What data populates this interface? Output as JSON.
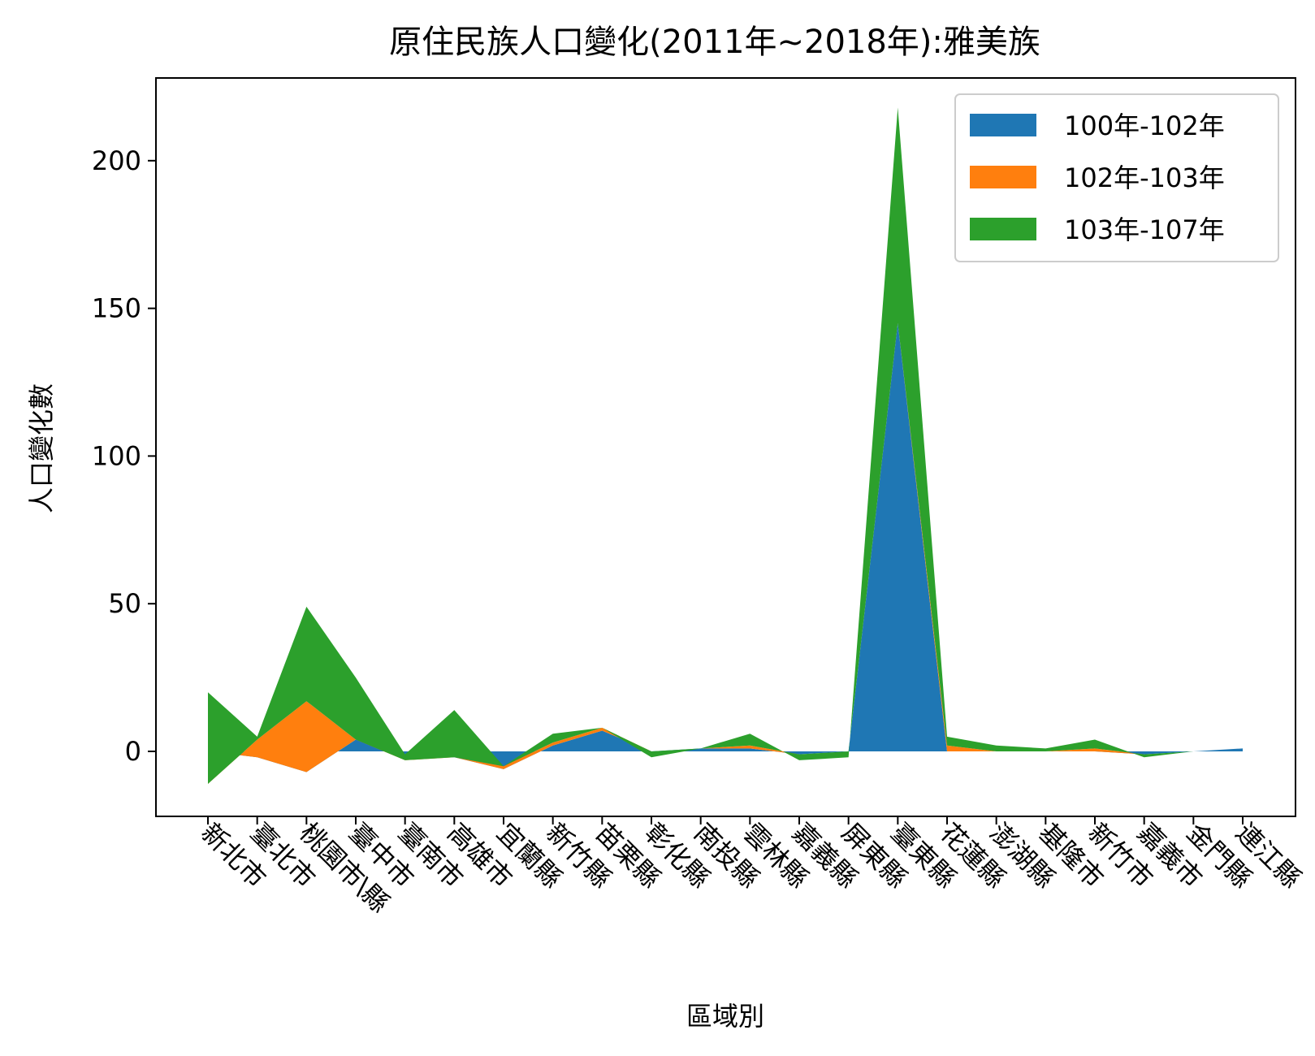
{
  "chart_data": {
    "type": "area",
    "stacked": true,
    "title": "原住民族人口變化(2011年~2018年):雅美族",
    "xlabel": "區域別",
    "ylabel": "人口變化數",
    "ylim": [
      -22,
      228
    ],
    "yticks": [
      0,
      50,
      100,
      150,
      200
    ],
    "grid": false,
    "legend_position": "top-right",
    "categories": [
      "新北市",
      "臺北市",
      "桃園市\\縣",
      "臺中市",
      "臺南市",
      "高雄市",
      "宜蘭縣",
      "新竹縣",
      "苗栗縣",
      "彰化縣",
      "南投縣",
      "雲林縣",
      "嘉義縣",
      "屏東縣",
      "臺東縣",
      "花蓮縣",
      "澎湖縣",
      "基隆市",
      "新竹市",
      "嘉義市",
      "金門縣",
      "連江縣"
    ],
    "series": [
      {
        "name": "100年-102年",
        "color": "#1f77b4",
        "values": [
          0,
          -2,
          -7,
          4,
          -2,
          -2,
          -6,
          2,
          7,
          0,
          1,
          1,
          -1,
          0,
          145,
          0,
          0,
          0,
          0,
          -1,
          0,
          1
        ]
      },
      {
        "name": "102年-103年",
        "color": "#ff7f0e",
        "values": [
          -11,
          6,
          24,
          0,
          -1,
          0,
          1,
          1,
          1,
          0,
          0,
          1,
          0,
          0,
          0,
          2,
          0,
          0,
          1,
          0,
          0,
          0
        ]
      },
      {
        "name": "103年-107年",
        "color": "#2ca02c",
        "values": [
          31,
          1,
          32,
          21,
          2,
          16,
          0,
          3,
          0,
          -2,
          0,
          4,
          -2,
          -2,
          73,
          3,
          2,
          1,
          3,
          -1,
          0,
          0
        ]
      }
    ]
  }
}
